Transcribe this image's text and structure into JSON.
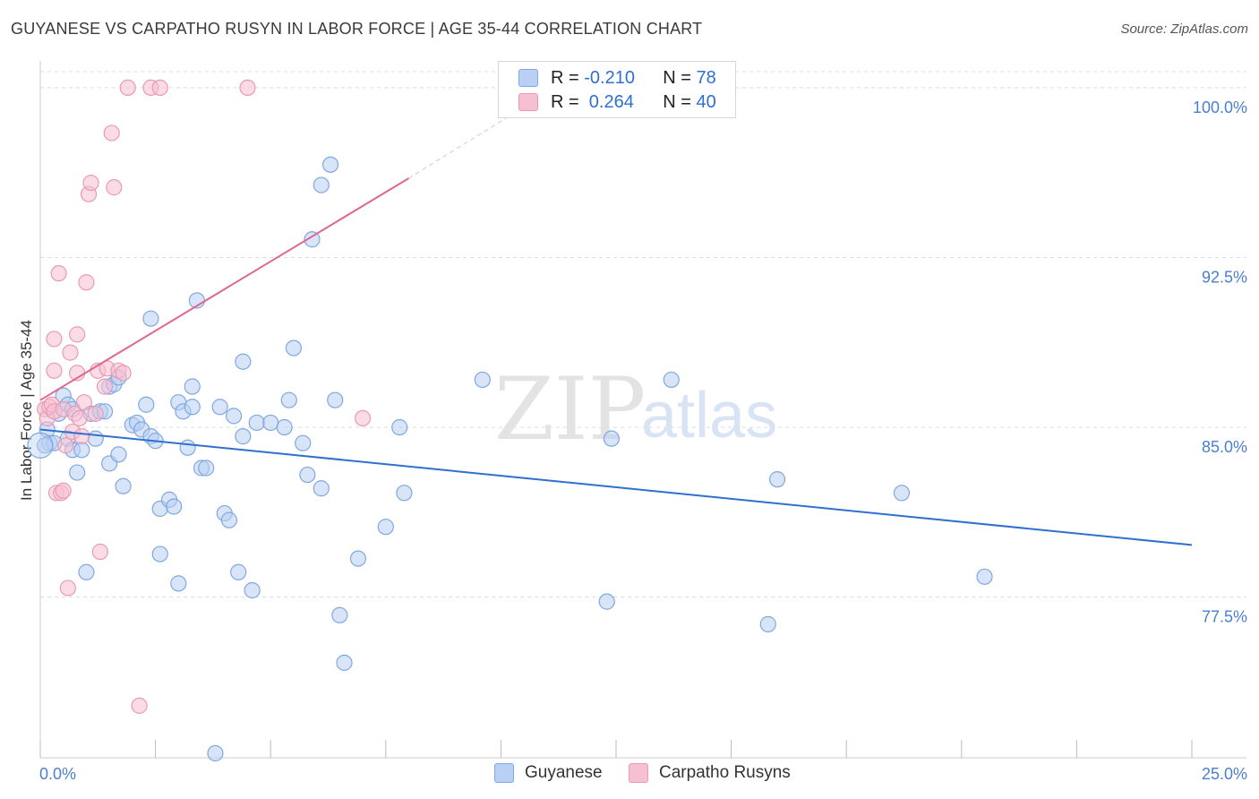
{
  "title": "GUYANESE VS CARPATHO RUSYN IN LABOR FORCE | AGE 35-44 CORRELATION CHART",
  "source": "Source: ZipAtlas.com",
  "watermark": {
    "zip": "ZIP",
    "atlas": "atlas"
  },
  "colors": {
    "guyanese_fill": "#b8d0f3",
    "guyanese_stroke": "#7fa8e0",
    "guyanese_line": "#2f6fd0",
    "rusyn_fill": "#f7c0d2",
    "rusyn_stroke": "#e89ab4",
    "rusyn_line": "#e0668f"
  },
  "legend": {
    "r_label": "R =",
    "n_label": "N =",
    "rows": [
      {
        "r": "-0.210",
        "n": "78"
      },
      {
        "r": " 0.264",
        "n": "40"
      }
    ]
  },
  "chart_data": {
    "type": "scatter",
    "title": "GUYANESE VS CARPATHO RUSYN IN LABOR FORCE | AGE 35-44 CORRELATION CHART",
    "xlabel": "",
    "ylabel": "In Labor Force | Age 35-44",
    "xlim": [
      0,
      25
    ],
    "ylim": [
      70.4,
      101.5
    ],
    "x_tick_labels": [
      "0.0%",
      "25.0%"
    ],
    "y_ticks": [
      77.5,
      85.0,
      92.5,
      100.0
    ],
    "y_tick_labels": [
      "77.5%",
      "85.0%",
      "92.5%",
      "100.0%"
    ],
    "grid": true,
    "legend_position": "top-center",
    "series": [
      {
        "name": "Guyanese",
        "R": -0.21,
        "N": 78,
        "trend": {
          "x": [
            0.0,
            25.0
          ],
          "y": [
            84.9,
            79.8
          ]
        },
        "points": [
          [
            0.15,
            84.9
          ],
          [
            0.2,
            84.3
          ],
          [
            0.3,
            84.3
          ],
          [
            0.4,
            85.6
          ],
          [
            0.5,
            86.4
          ],
          [
            0.6,
            86.0
          ],
          [
            0.7,
            85.8
          ],
          [
            0.6,
            84.5
          ],
          [
            0.7,
            84.0
          ],
          [
            0.8,
            83.0
          ],
          [
            0.9,
            84.0
          ],
          [
            1.0,
            78.6
          ],
          [
            1.1,
            85.6
          ],
          [
            1.2,
            84.5
          ],
          [
            1.3,
            85.7
          ],
          [
            1.4,
            85.7
          ],
          [
            1.5,
            86.8
          ],
          [
            1.5,
            83.4
          ],
          [
            1.6,
            86.9
          ],
          [
            1.7,
            87.2
          ],
          [
            1.7,
            83.8
          ],
          [
            1.8,
            82.4
          ],
          [
            2.0,
            85.1
          ],
          [
            2.1,
            85.2
          ],
          [
            2.2,
            84.9
          ],
          [
            2.3,
            86.0
          ],
          [
            2.4,
            84.6
          ],
          [
            2.4,
            89.8
          ],
          [
            2.5,
            84.4
          ],
          [
            2.6,
            79.4
          ],
          [
            2.6,
            81.4
          ],
          [
            2.8,
            81.8
          ],
          [
            2.9,
            81.5
          ],
          [
            3.0,
            78.1
          ],
          [
            3.0,
            86.1
          ],
          [
            3.1,
            85.7
          ],
          [
            3.2,
            84.1
          ],
          [
            3.3,
            85.9
          ],
          [
            3.3,
            86.8
          ],
          [
            3.4,
            90.6
          ],
          [
            3.5,
            83.2
          ],
          [
            3.6,
            83.2
          ],
          [
            3.8,
            70.6
          ],
          [
            3.9,
            85.9
          ],
          [
            4.0,
            81.2
          ],
          [
            4.1,
            80.9
          ],
          [
            4.2,
            85.5
          ],
          [
            4.3,
            78.6
          ],
          [
            4.4,
            84.6
          ],
          [
            4.4,
            87.9
          ],
          [
            4.6,
            77.8
          ],
          [
            4.7,
            85.2
          ],
          [
            5.0,
            85.2
          ],
          [
            5.3,
            85.0
          ],
          [
            5.4,
            86.2
          ],
          [
            5.5,
            88.5
          ],
          [
            5.7,
            84.3
          ],
          [
            5.8,
            82.9
          ],
          [
            5.9,
            93.3
          ],
          [
            6.1,
            95.7
          ],
          [
            6.1,
            82.3
          ],
          [
            6.3,
            96.6
          ],
          [
            6.4,
            86.2
          ],
          [
            6.5,
            76.7
          ],
          [
            6.6,
            74.6
          ],
          [
            6.9,
            79.2
          ],
          [
            7.5,
            80.6
          ],
          [
            7.8,
            85.0
          ],
          [
            7.9,
            82.1
          ],
          [
            9.6,
            87.1
          ],
          [
            12.3,
            77.3
          ],
          [
            12.4,
            84.5
          ],
          [
            13.7,
            87.1
          ],
          [
            15.8,
            76.3
          ],
          [
            16.0,
            82.7
          ],
          [
            18.7,
            82.1
          ],
          [
            20.5,
            78.4
          ],
          [
            0.1,
            84.2
          ]
        ]
      },
      {
        "name": "Carpatho Rusyns",
        "R": 0.264,
        "N": 40,
        "trend": {
          "x": [
            0.0,
            8.0
          ],
          "y": [
            86.2,
            96.0
          ]
        },
        "trend_dashed": {
          "x": [
            8.0,
            10.7
          ],
          "y": [
            96.0,
            99.4
          ]
        },
        "points": [
          [
            0.1,
            85.8
          ],
          [
            0.15,
            85.4
          ],
          [
            0.2,
            85.9
          ],
          [
            0.25,
            86.0
          ],
          [
            0.3,
            85.7
          ],
          [
            0.3,
            88.9
          ],
          [
            0.3,
            87.5
          ],
          [
            0.35,
            82.1
          ],
          [
            0.4,
            91.8
          ],
          [
            0.45,
            82.1
          ],
          [
            0.5,
            82.2
          ],
          [
            0.5,
            85.8
          ],
          [
            0.55,
            84.2
          ],
          [
            0.6,
            77.9
          ],
          [
            0.65,
            88.3
          ],
          [
            0.7,
            84.8
          ],
          [
            0.75,
            85.6
          ],
          [
            0.8,
            89.1
          ],
          [
            0.8,
            87.4
          ],
          [
            0.85,
            85.4
          ],
          [
            0.9,
            84.6
          ],
          [
            0.95,
            86.1
          ],
          [
            1.0,
            91.4
          ],
          [
            1.05,
            95.3
          ],
          [
            1.1,
            95.8
          ],
          [
            1.2,
            85.6
          ],
          [
            1.25,
            87.5
          ],
          [
            1.3,
            79.5
          ],
          [
            1.4,
            86.8
          ],
          [
            1.45,
            87.6
          ],
          [
            1.55,
            98.0
          ],
          [
            1.6,
            95.6
          ],
          [
            1.7,
            87.5
          ],
          [
            1.8,
            87.4
          ],
          [
            1.9,
            100.0
          ],
          [
            2.15,
            72.7
          ],
          [
            2.4,
            100.0
          ],
          [
            2.6,
            100.0
          ],
          [
            4.5,
            100.0
          ],
          [
            7.0,
            85.4
          ]
        ]
      }
    ]
  },
  "bottom_legend": [
    {
      "label": "Guyanese"
    },
    {
      "label": "Carpatho Rusyns"
    }
  ]
}
